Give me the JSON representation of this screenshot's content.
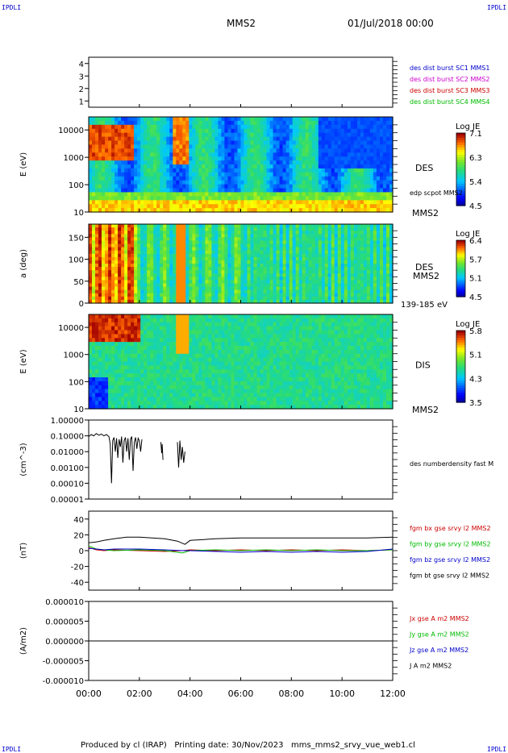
{
  "header": {
    "left_tag": "IPDLI",
    "right_tag": "IPDLI",
    "title": "MMS2",
    "date": "01/Jul/2018 00:00"
  },
  "footer": {
    "text": "Produced by cl (IRAP)   Printing date: 30/Nov/2023   mms_mms2_srvy_vue_web1.cl",
    "left_tag": "IPDLI",
    "right_tag": "IPDLI"
  },
  "chart_data": [
    {
      "type": "line",
      "title": "",
      "ylabel": "",
      "yticks": [
        1,
        2,
        3,
        4
      ],
      "ylim": [
        0.5,
        4.5
      ],
      "legend": [
        {
          "name": "des dist burst SC1 MMS1",
          "color": "#0000cc"
        },
        {
          "name": "des dist burst SC2 MMS2",
          "color": "#cc00cc"
        },
        {
          "name": "des dist burst SC3 MMS3",
          "color": "#cc0000"
        },
        {
          "name": "des dist burst SC4 MMS4",
          "color": "#00bb00"
        }
      ],
      "series": []
    },
    {
      "type": "heatmap",
      "ylabel": "E (eV)",
      "yscale": "log",
      "ylim": [
        10,
        30000
      ],
      "yticks": [
        10,
        100,
        1000,
        10000
      ],
      "right_label": "DES",
      "spacecraft": "MMS2",
      "annotation": "edp scpot MMS2",
      "colorbar": {
        "title": "Log JE",
        "range": [
          4.5,
          7.1
        ],
        "ticks": [
          "7.1",
          "6.3",
          "5.4",
          "4.5"
        ]
      }
    },
    {
      "type": "heatmap",
      "ylabel": "a (deg)",
      "ylim": [
        0,
        180
      ],
      "yticks": [
        0,
        50,
        100,
        150
      ],
      "right_label": "DES",
      "spacecraft": "MMS2",
      "energy_range": "139-185 eV",
      "colorbar": {
        "title": "Log JE",
        "range": [
          4.5,
          6.4
        ],
        "ticks": [
          "6.4",
          "5.7",
          "5.1",
          "4.5"
        ]
      }
    },
    {
      "type": "heatmap",
      "ylabel": "E (eV)",
      "yscale": "log",
      "ylim": [
        10,
        30000
      ],
      "yticks": [
        10,
        100,
        1000,
        10000
      ],
      "right_label": "DIS",
      "spacecraft": "MMS2",
      "colorbar": {
        "title": "Log JE",
        "range": [
          3.5,
          5.8
        ],
        "ticks": [
          "5.8",
          "5.1",
          "4.3",
          "3.5"
        ]
      }
    },
    {
      "type": "line",
      "ylabel": "(cm^-3)",
      "yscale": "log",
      "ylim": [
        1e-05,
        1.0
      ],
      "ytick_labels": [
        "1.00000",
        "0.10000",
        "0.01000",
        "0.00100",
        "0.00010",
        "0.00001"
      ],
      "series": [
        {
          "name": "des numberdensity fast M",
          "color": "#000000",
          "x": [
            0.0,
            0.1,
            0.2,
            0.3,
            0.4,
            0.5,
            0.6,
            0.7,
            0.8,
            0.85,
            0.9,
            0.95,
            1.0,
            1.05,
            1.1,
            1.15,
            1.2,
            1.25,
            1.3,
            1.35,
            1.4,
            1.45,
            1.5,
            1.55,
            1.6,
            1.65,
            1.7,
            1.75,
            1.8,
            1.85,
            1.9,
            1.95,
            2.0,
            2.05,
            2.1
          ],
          "y": [
            0.09,
            0.12,
            0.1,
            0.14,
            0.11,
            0.13,
            0.1,
            0.12,
            0.09,
            0.03,
            0.0001,
            0.05,
            0.08,
            0.01,
            0.07,
            0.004,
            0.06,
            0.02,
            0.09,
            0.002,
            0.05,
            0.08,
            0.01,
            0.07,
            0.003,
            0.06,
            0.09,
            0.0006,
            0.04,
            0.08,
            0.015,
            0.07,
            0.05,
            0.01,
            0.06
          ]
        },
        {
          "name": "",
          "color": "#000000",
          "x": [
            2.85,
            2.88,
            2.9,
            2.93
          ],
          "y": [
            0.04,
            0.008,
            0.03,
            0.003
          ]
        },
        {
          "name": "",
          "color": "#000000",
          "x": [
            3.5,
            3.55,
            3.6,
            3.65,
            3.7,
            3.75,
            3.8
          ],
          "y": [
            0.04,
            0.001,
            0.05,
            0.003,
            0.02,
            0.002,
            0.01
          ]
        }
      ]
    },
    {
      "type": "line",
      "ylabel": "(nT)",
      "ylim": [
        -50,
        50
      ],
      "yticks": [
        -40,
        -20,
        0,
        20,
        40
      ],
      "series": [
        {
          "name": "fgm bx gse srvy l2 MMS2",
          "color": "#cc0000",
          "x": [
            0,
            0.3,
            0.6,
            1.0,
            2.0,
            3.0,
            3.7,
            4.0,
            5.0,
            6.0,
            7.0,
            8.0,
            9.0,
            10.0,
            11.0,
            12.0
          ],
          "y": [
            4,
            1,
            0,
            1,
            0,
            -1,
            0,
            1,
            0,
            1,
            0,
            1,
            0,
            1,
            0,
            1
          ]
        },
        {
          "name": "fgm by gse srvy l2 MMS2",
          "color": "#00bb00",
          "x": [
            0,
            0.3,
            0.6,
            1.0,
            2.0,
            3.0,
            3.7,
            4.0,
            5.0,
            6.0,
            7.0,
            8.0,
            9.0,
            10.0,
            11.0,
            12.0
          ],
          "y": [
            6,
            2,
            1,
            0,
            1,
            0,
            -3,
            0,
            1,
            0,
            1,
            0,
            1,
            0,
            0,
            1
          ]
        },
        {
          "name": "fgm bz gse srvy l2 MMS2",
          "color": "#0000cc",
          "x": [
            0,
            0.3,
            0.6,
            1.0,
            2.0,
            3.0,
            3.7,
            4.0,
            5.0,
            6.0,
            7.0,
            8.0,
            9.0,
            10.0,
            11.0,
            12.0
          ],
          "y": [
            3,
            2,
            1,
            2,
            2,
            1,
            0,
            0,
            -1,
            -2,
            -1,
            -2,
            -1,
            -2,
            -1,
            2
          ]
        },
        {
          "name": "fgm bt gse srvy l2 MMS2",
          "color": "#000000",
          "x": [
            0,
            0.3,
            0.6,
            1.0,
            1.5,
            2.0,
            2.5,
            3.0,
            3.5,
            3.8,
            4.0,
            5.0,
            6.0,
            7.0,
            8.0,
            9.0,
            10.0,
            11.0,
            12.0
          ],
          "y": [
            10,
            11,
            13,
            15,
            17,
            17,
            16,
            15,
            12,
            8,
            13,
            15,
            16,
            16,
            16,
            16,
            16,
            16,
            17
          ]
        }
      ]
    },
    {
      "type": "line",
      "ylabel": "(A/m2)",
      "ylim": [
        -1e-05,
        1e-05
      ],
      "ytick_labels": [
        "0.000010",
        "0.000005",
        "0.000000",
        "-0.000005",
        "-0.000010"
      ],
      "series": [
        {
          "name": "Jx gse A m2 MMS2",
          "color": "#cc0000",
          "x": [
            0,
            12
          ],
          "y": [
            0,
            0
          ]
        },
        {
          "name": "Jy gse A m2 MMS2",
          "color": "#00bb00",
          "x": [
            0,
            12
          ],
          "y": [
            0,
            0
          ]
        },
        {
          "name": "Jz gse A m2 MMS2",
          "color": "#0000cc",
          "x": [
            0,
            12
          ],
          "y": [
            0,
            0
          ]
        },
        {
          "name": "J A m2 MMS2",
          "color": "#000000",
          "x": [
            0,
            12
          ],
          "y": [
            0,
            0
          ]
        }
      ]
    }
  ],
  "time_axis": {
    "range_hours": [
      0,
      12
    ],
    "ticks": [
      0,
      2,
      4,
      6,
      8,
      10,
      12
    ],
    "tick_labels": [
      "00:00",
      "02:00",
      "04:00",
      "06:00",
      "08:00",
      "10:00",
      "12:00"
    ]
  },
  "colors": {
    "corner_tag": "#0000cc",
    "background": "#ffffff",
    "axis": "#000000"
  }
}
